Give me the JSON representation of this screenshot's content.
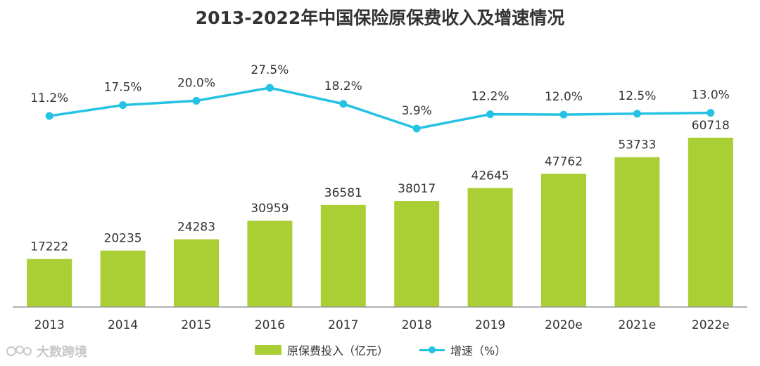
{
  "chart_data": {
    "type": "bar+line",
    "title": "2013-2022年中国保险原保费收入及增速情况",
    "categories": [
      "2013",
      "2014",
      "2015",
      "2016",
      "2017",
      "2018",
      "2019",
      "2020e",
      "2021e",
      "2022e"
    ],
    "series": [
      {
        "name": "原保费投入（亿元）",
        "type": "bar",
        "color": "#a9cf35",
        "values": [
          17222,
          20235,
          24283,
          30959,
          36581,
          38017,
          42645,
          47762,
          53733,
          60718
        ],
        "labels": [
          "17222",
          "20235",
          "24283",
          "30959",
          "36581",
          "38017",
          "42645",
          "47762",
          "53733",
          "60718"
        ]
      },
      {
        "name": "增速（%）",
        "type": "line",
        "color": "#25c2e3",
        "values": [
          11.2,
          17.5,
          20.0,
          27.5,
          18.2,
          3.9,
          12.2,
          12.0,
          12.5,
          13.0
        ],
        "labels": [
          "11.2%",
          "17.5%",
          "20.0%",
          "27.5%",
          "18.2%",
          "3.9%",
          "12.2%",
          "12.0%",
          "12.5%",
          "13.0%"
        ]
      }
    ],
    "bar_ylim": [
      0,
      65000
    ],
    "line_ylim": [
      -100,
      40
    ],
    "legend_position": "bottom"
  },
  "legend": {
    "bar_label": "原保费投入（亿元）",
    "line_label": "增速（%）"
  },
  "watermark": {
    "text": "大数跨境"
  },
  "colors": {
    "bar": "#a9cf35",
    "line": "#25c2e3",
    "axis": "#999999",
    "text": "#333333",
    "watermark": "#c8c8c8"
  }
}
